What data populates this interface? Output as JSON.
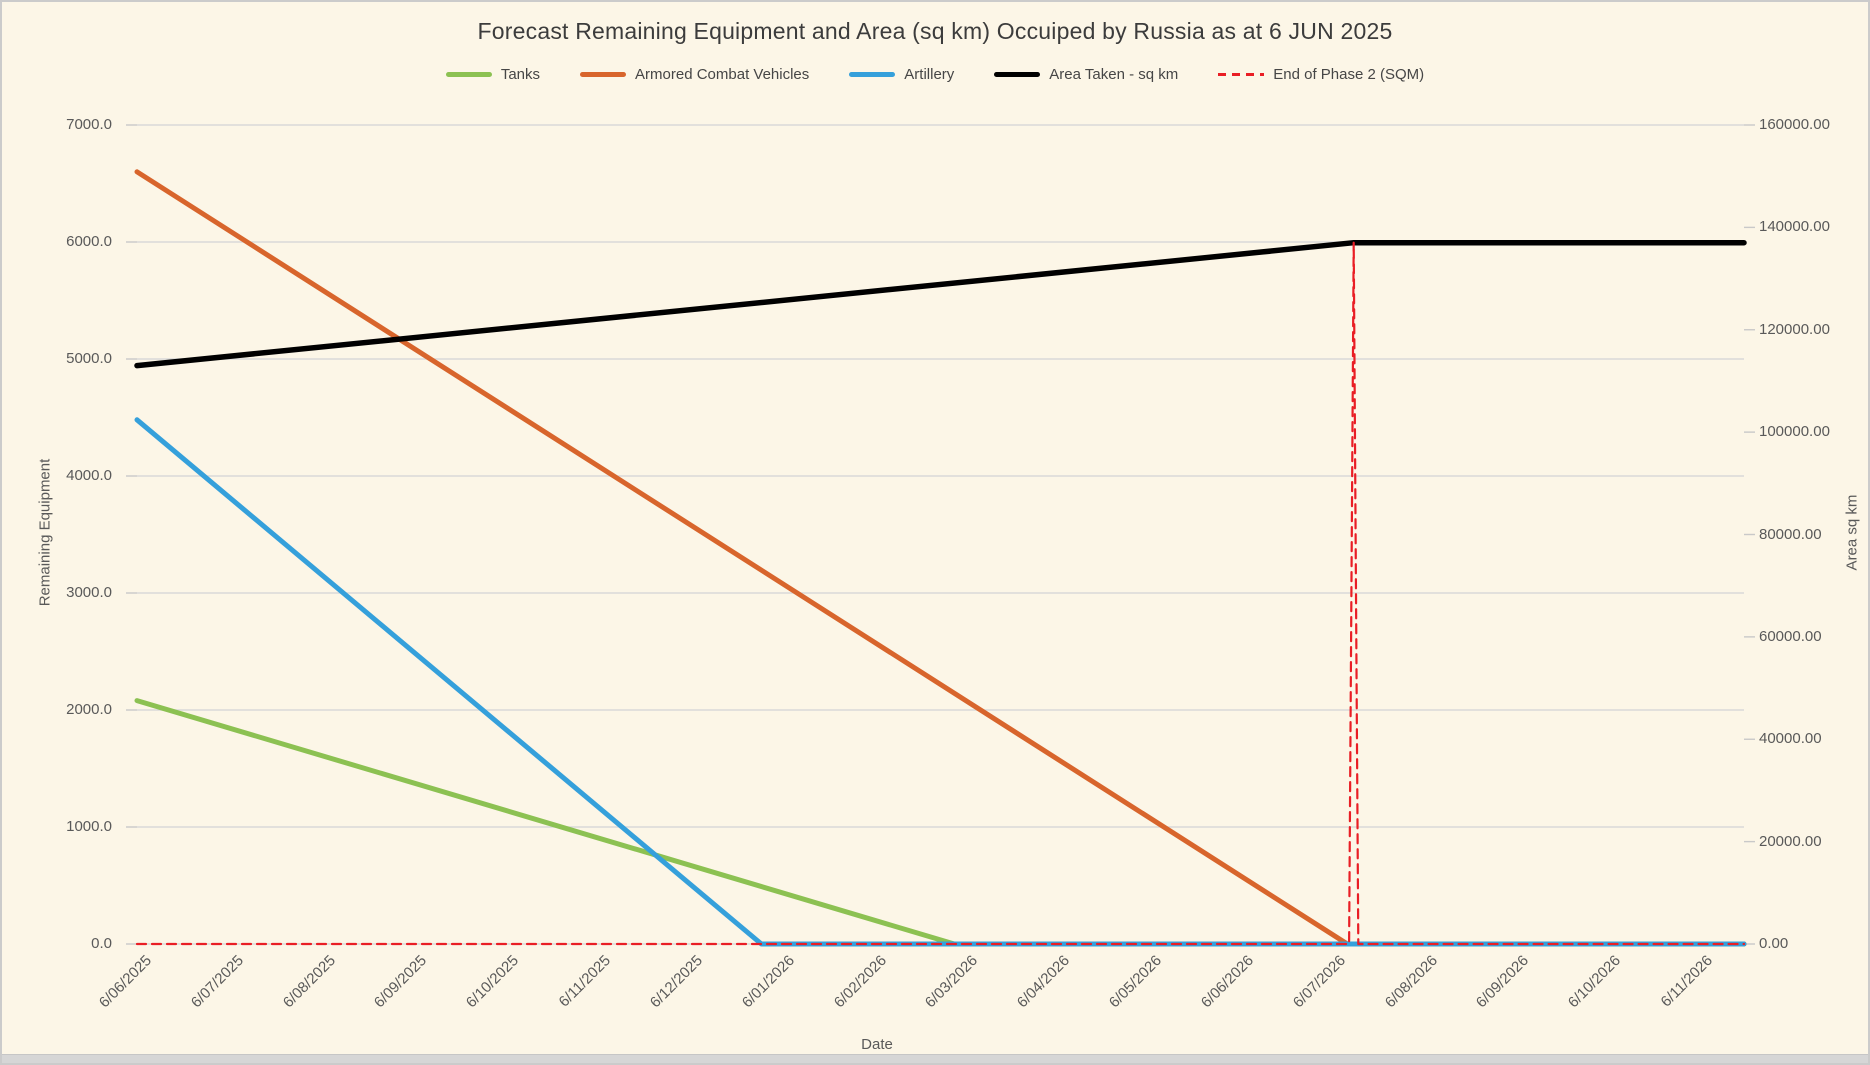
{
  "chart_data": {
    "type": "line",
    "title": "Forecast Remaining Equipment and Area (sq km) Occuiped by Russia as at 6 JUN 2025",
    "legend_position": "top",
    "grid": "horizontal",
    "x_axis": {
      "label": "Date",
      "unit": "months from 6/06/2025",
      "xlim": [
        0,
        17.5
      ],
      "tick_labels": [
        "6/06/2025",
        "6/07/2025",
        "6/08/2025",
        "6/09/2025",
        "6/10/2025",
        "6/11/2025",
        "6/12/2025",
        "6/01/2026",
        "6/02/2026",
        "6/03/2026",
        "6/04/2026",
        "6/05/2026",
        "6/06/2026",
        "6/07/2026",
        "6/08/2026",
        "6/09/2026",
        "6/10/2026",
        "6/11/2026"
      ]
    },
    "left_axis": {
      "label": "Remaining Equipment",
      "ylim": [
        0,
        7000
      ],
      "tick_labels": [
        "0.0",
        "1000.0",
        "2000.0",
        "3000.0",
        "4000.0",
        "5000.0",
        "6000.0",
        "7000.0"
      ]
    },
    "right_axis": {
      "label": "Area sq km",
      "ylim": [
        0,
        160000
      ],
      "tick_labels": [
        "0.00",
        "20000.00",
        "40000.00",
        "60000.00",
        "80000.00",
        "100000.00",
        "120000.00",
        "140000.00",
        "160000.00"
      ]
    },
    "series": [
      {
        "name": "Tanks",
        "axis": "left",
        "color": "#8CC152",
        "style": "solid",
        "width": 5,
        "points": [
          [
            0,
            2080
          ],
          [
            8.9,
            0
          ],
          [
            17.5,
            0
          ]
        ]
      },
      {
        "name": "Armored Combat Vehicles",
        "axis": "left",
        "color": "#D8652C",
        "style": "solid",
        "width": 5,
        "points": [
          [
            0,
            6600
          ],
          [
            13.18,
            0
          ],
          [
            17.5,
            0
          ]
        ]
      },
      {
        "name": "Artillery",
        "axis": "left",
        "color": "#35A0DB",
        "style": "solid",
        "width": 5,
        "points": [
          [
            0,
            4480
          ],
          [
            6.8,
            0
          ],
          [
            17.5,
            0
          ]
        ]
      },
      {
        "name": "Area Taken - sq km",
        "axis": "right",
        "color": "#000000",
        "style": "solid",
        "width": 5.5,
        "points": [
          [
            0,
            113000
          ],
          [
            13.25,
            137000
          ],
          [
            17.5,
            137000
          ]
        ]
      },
      {
        "name": "End of Phase 2 (SQM)",
        "axis": "right",
        "color": "#E91E25",
        "style": "dashed",
        "width": 2.2,
        "points": [
          [
            0,
            0
          ],
          [
            13.2,
            0
          ],
          [
            13.25,
            137000
          ],
          [
            13.3,
            0
          ],
          [
            17.5,
            0
          ]
        ]
      }
    ],
    "colors": {
      "background": "#FCF6E7",
      "gridline": "#D9D9D9",
      "tick_mark": "#C9C9C9",
      "title_text": "#3C3C3C",
      "axis_text": "#595959"
    }
  }
}
